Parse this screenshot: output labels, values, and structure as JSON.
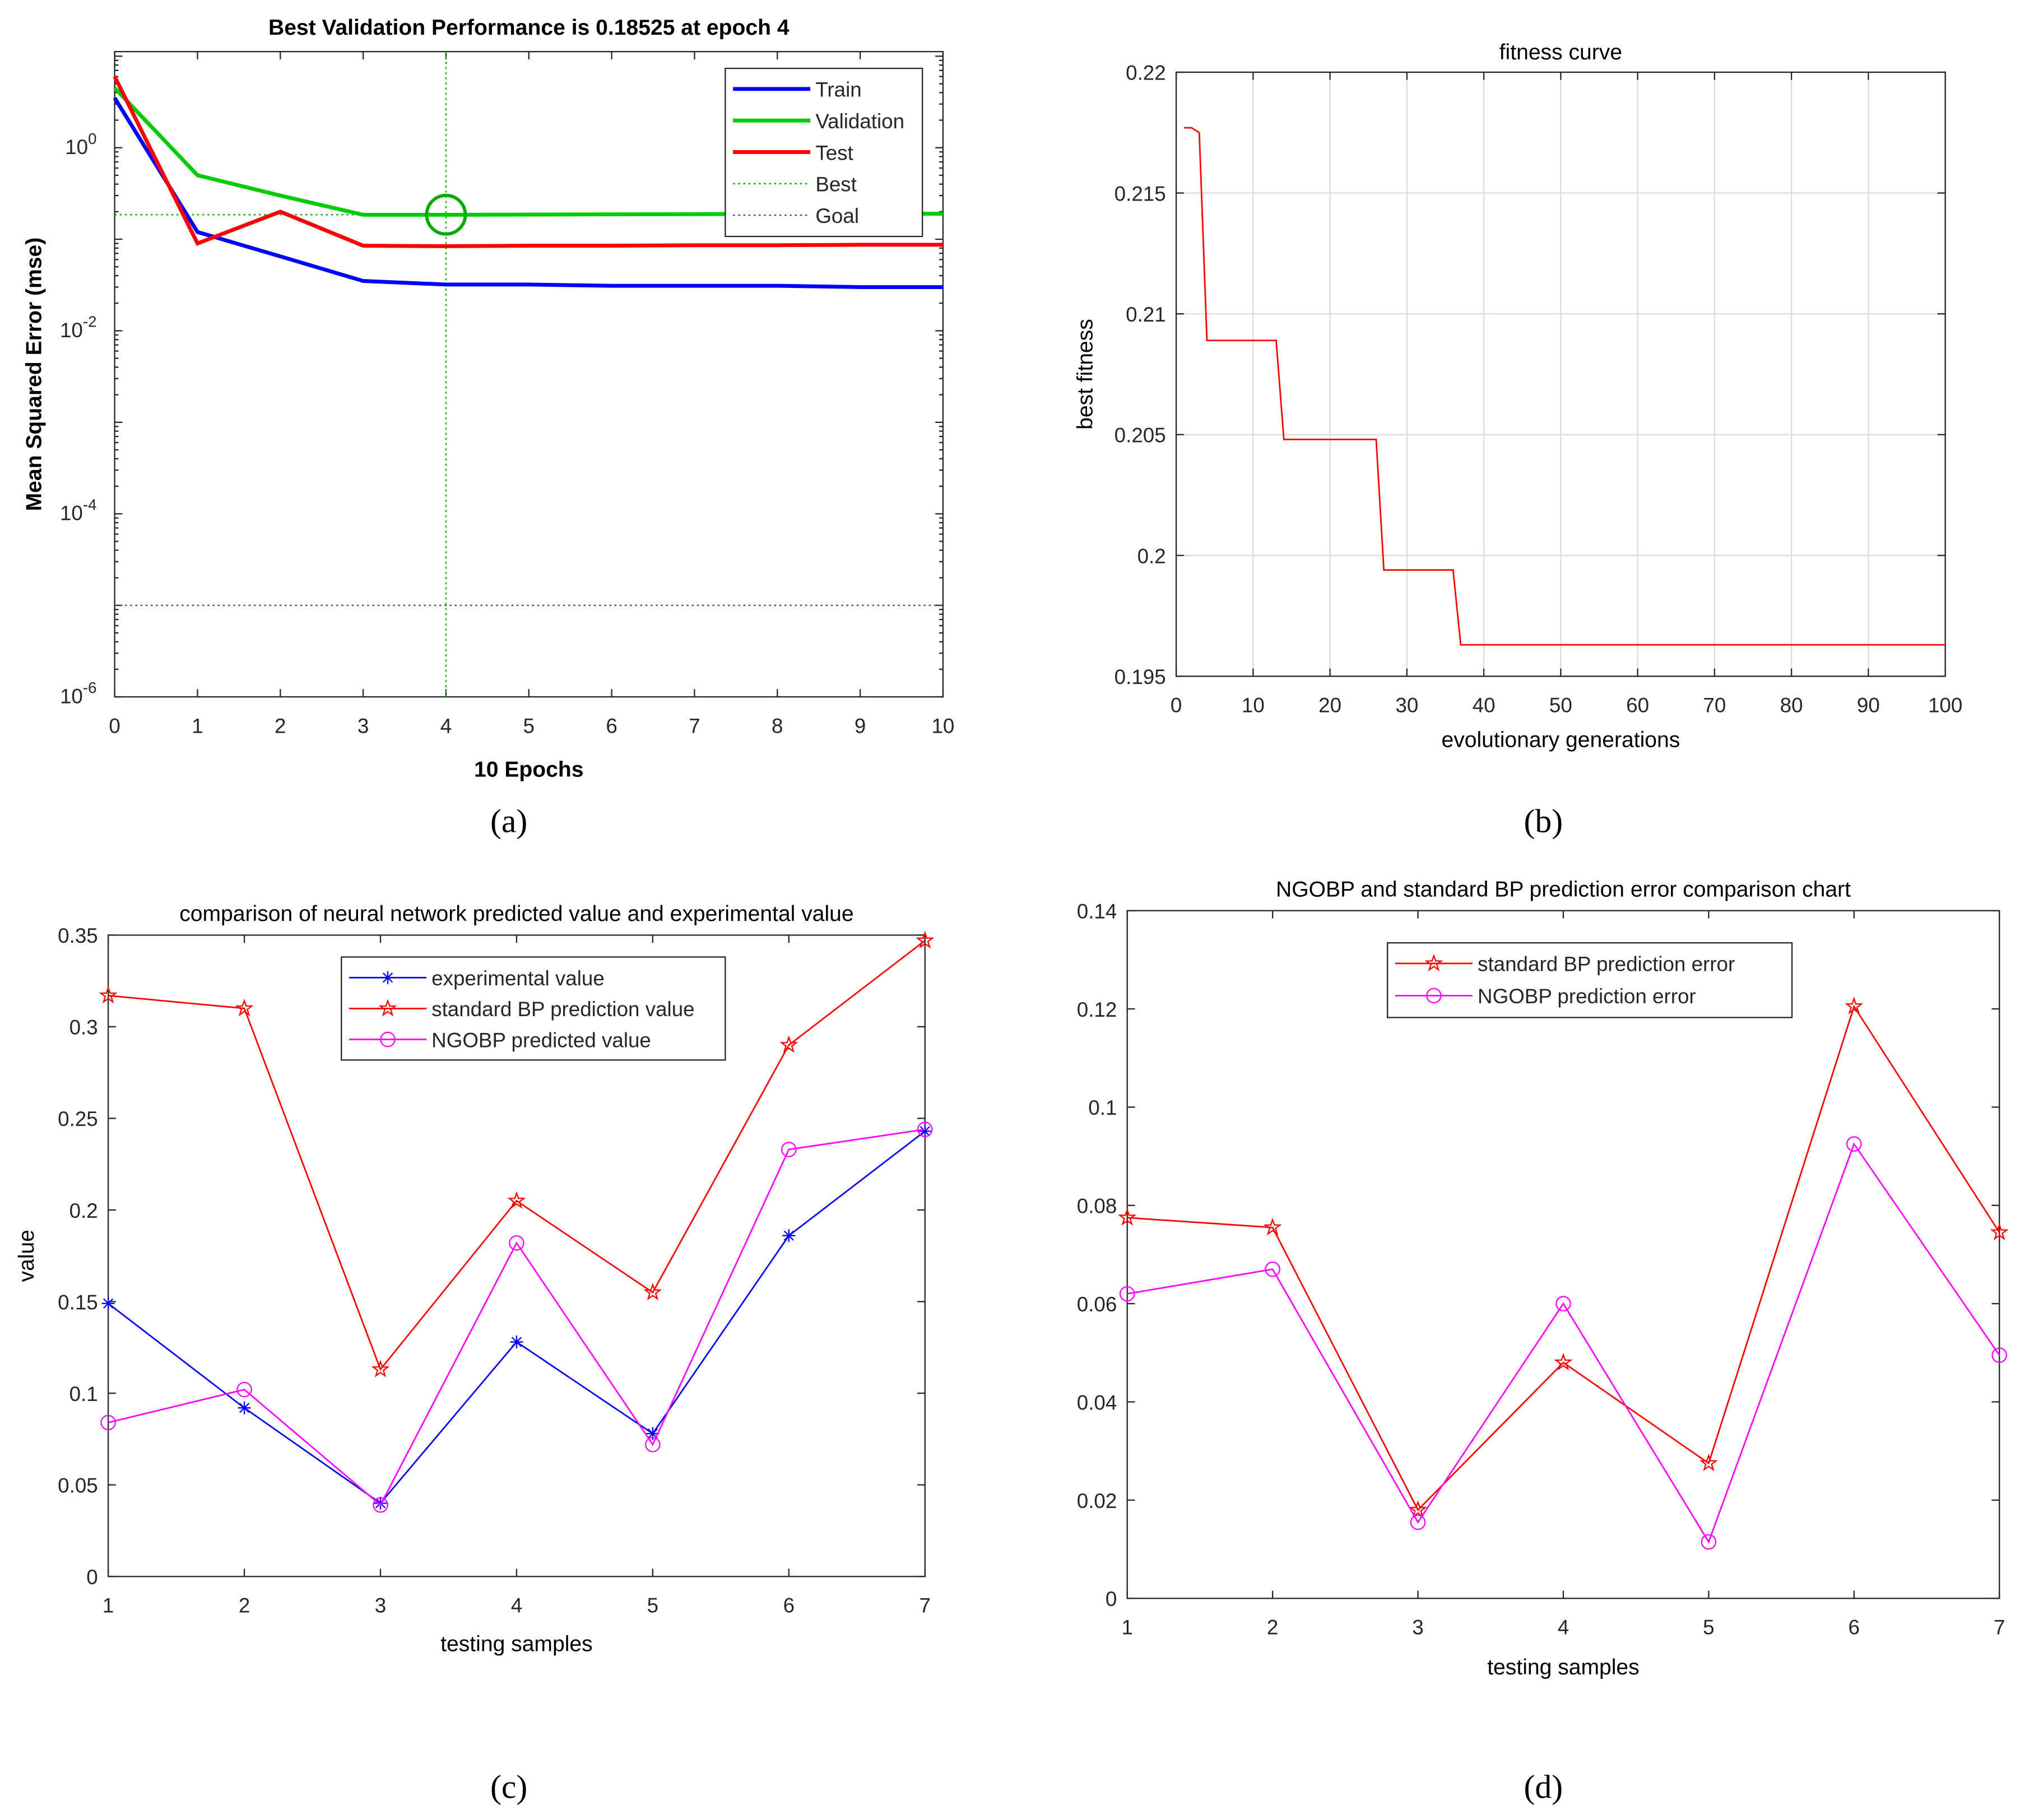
{
  "panel_labels": [
    "(a)",
    "(b)",
    "(c)",
    "(d)"
  ],
  "chart_data": [
    {
      "id": "a",
      "type": "line",
      "yscale": "log",
      "title": "Best Validation Performance is 0.18525 at epoch 4",
      "xlabel": "10 Epochs",
      "ylabel": "Mean Squared Error  (mse)",
      "xlim": [
        0,
        10
      ],
      "ylim_exp": [
        -6,
        1.05
      ],
      "xticks": [
        0,
        1,
        2,
        3,
        4,
        5,
        6,
        7,
        8,
        9,
        10
      ],
      "yticks_exp": [
        0,
        -2,
        -4,
        -6
      ],
      "ytick_labels": [
        "10",
        "10",
        "10",
        "10"
      ],
      "ytick_sups": [
        "0",
        "-2",
        "-4",
        "-6"
      ],
      "x": [
        0,
        1,
        2,
        3,
        4,
        5,
        6,
        7,
        8,
        9,
        10
      ],
      "series": [
        {
          "name": "Train",
          "color": "#0000ff",
          "values": [
            3.5,
            0.12,
            0.065,
            0.035,
            0.032,
            0.032,
            0.031,
            0.031,
            0.031,
            0.03,
            0.03
          ]
        },
        {
          "name": "Validation",
          "color": "#00cc00",
          "values": [
            4.5,
            0.5,
            0.3,
            0.185,
            0.185,
            0.186,
            0.187,
            0.188,
            0.19,
            0.19,
            0.19
          ]
        },
        {
          "name": "Test",
          "color": "#ff0000",
          "values": [
            6.0,
            0.09,
            0.2,
            0.085,
            0.084,
            0.085,
            0.085,
            0.086,
            0.086,
            0.087,
            0.087
          ]
        }
      ],
      "best": {
        "name": "Best",
        "epoch": 4,
        "value": 0.18525,
        "color": "#00aa00"
      },
      "goal": {
        "name": "Goal",
        "value": 1e-05
      },
      "legend": "top-right"
    },
    {
      "id": "b",
      "type": "line",
      "title": "fitness curve",
      "xlabel": "evolutionary generations",
      "ylabel": "best fitness",
      "xlim": [
        0,
        100
      ],
      "ylim": [
        0.195,
        0.22
      ],
      "grid": true,
      "xticks": [
        0,
        10,
        20,
        30,
        40,
        50,
        60,
        70,
        80,
        90,
        100
      ],
      "yticks": [
        0.195,
        0.2,
        0.205,
        0.21,
        0.215,
        0.22
      ],
      "ytick_labels": [
        "0.195",
        "0.2",
        "0.205",
        "0.21",
        "0.215",
        "0.22"
      ],
      "series": [
        {
          "name": "best fitness",
          "color": "#ff0000",
          "x": [
            1,
            2,
            3,
            4,
            13,
            14,
            26,
            27,
            36,
            37,
            100
          ],
          "values": [
            0.2177,
            0.2177,
            0.2175,
            0.2089,
            0.2089,
            0.2048,
            0.2048,
            0.1994,
            0.1994,
            0.1963,
            0.1963
          ]
        }
      ]
    },
    {
      "id": "c",
      "type": "line",
      "title": "comparison of neural network predicted value and experimental value",
      "xlabel": "testing samples",
      "ylabel": "value",
      "xlim": [
        1,
        7
      ],
      "ylim": [
        0,
        0.35
      ],
      "xticks": [
        1,
        2,
        3,
        4,
        5,
        6,
        7
      ],
      "yticks": [
        0,
        0.05,
        0.1,
        0.15,
        0.2,
        0.25,
        0.3,
        0.35
      ],
      "ytick_labels": [
        "0",
        "0.05",
        "0.1",
        "0.15",
        "0.2",
        "0.25",
        "0.3",
        "0.35"
      ],
      "x": [
        1,
        2,
        3,
        4,
        5,
        6,
        7
      ],
      "series": [
        {
          "name": "experimental value",
          "color": "#0000ff",
          "marker": "asterisk",
          "values": [
            0.149,
            0.092,
            0.04,
            0.128,
            0.078,
            0.186,
            0.243
          ]
        },
        {
          "name": "standard BP prediction value",
          "color": "#ff0000",
          "marker": "star",
          "values": [
            0.317,
            0.31,
            0.113,
            0.205,
            0.155,
            0.29,
            0.347
          ]
        },
        {
          "name": "NGOBP predicted value",
          "color": "#ff00ff",
          "marker": "circle",
          "values": [
            0.084,
            0.102,
            0.039,
            0.182,
            0.072,
            0.233,
            0.244
          ]
        }
      ],
      "legend": "top-center"
    },
    {
      "id": "d",
      "type": "line",
      "title": "NGOBP and standard BP prediction error comparison chart",
      "xlabel": "testing samples",
      "ylabel": "",
      "xlim": [
        1,
        7
      ],
      "ylim": [
        0,
        0.14
      ],
      "xticks": [
        1,
        2,
        3,
        4,
        5,
        6,
        7
      ],
      "yticks": [
        0,
        0.02,
        0.04,
        0.06,
        0.08,
        0.1,
        0.12,
        0.14
      ],
      "ytick_labels": [
        "0",
        "0.02",
        "0.04",
        "0.06",
        "0.08",
        "0.1",
        "0.12",
        "0.14"
      ],
      "x": [
        1,
        2,
        3,
        4,
        5,
        6,
        7
      ],
      "series": [
        {
          "name": "standard BP prediction error",
          "color": "#ff0000",
          "marker": "star",
          "values": [
            0.0775,
            0.0755,
            0.018,
            0.048,
            0.0275,
            0.1205,
            0.0745
          ]
        },
        {
          "name": "NGOBP prediction error",
          "color": "#ff00ff",
          "marker": "circle",
          "values": [
            0.062,
            0.067,
            0.0155,
            0.06,
            0.0115,
            0.0925,
            0.0495
          ]
        }
      ],
      "legend": "top-center"
    }
  ]
}
